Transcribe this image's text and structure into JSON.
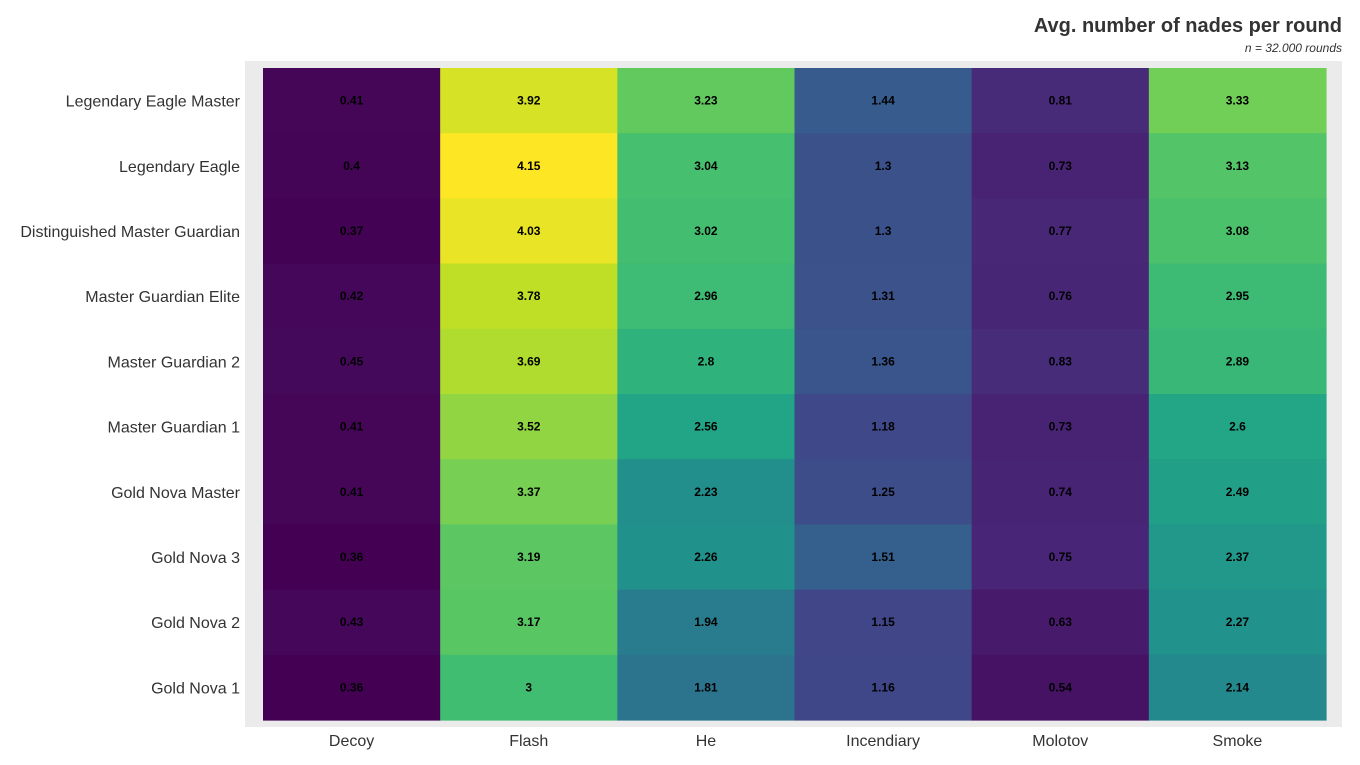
{
  "chart_data": {
    "type": "heatmap",
    "title": "Avg. number of nades per round",
    "subtitle": "n = 32.000 rounds",
    "colormap": "viridis",
    "value_range": [
      0.36,
      4.15
    ],
    "panel_background": "#ebebeb",
    "x_categories": [
      "Decoy",
      "Flash",
      "He",
      "Incendiary",
      "Molotov",
      "Smoke"
    ],
    "y_categories": [
      "Legendary Eagle Master",
      "Legendary Eagle",
      "Distinguished Master Guardian",
      "Master Guardian Elite",
      "Master Guardian 2",
      "Master Guardian 1",
      "Gold Nova Master",
      "Gold Nova 3",
      "Gold Nova 2",
      "Gold Nova 1"
    ],
    "values": [
      [
        0.41,
        3.92,
        3.23,
        1.44,
        0.81,
        3.33
      ],
      [
        0.4,
        4.15,
        3.04,
        1.3,
        0.73,
        3.13
      ],
      [
        0.37,
        4.03,
        3.02,
        1.3,
        0.77,
        3.08
      ],
      [
        0.42,
        3.78,
        2.96,
        1.31,
        0.76,
        2.95
      ],
      [
        0.45,
        3.69,
        2.8,
        1.36,
        0.83,
        2.89
      ],
      [
        0.41,
        3.52,
        2.56,
        1.18,
        0.73,
        2.6
      ],
      [
        0.41,
        3.37,
        2.23,
        1.25,
        0.74,
        2.49
      ],
      [
        0.36,
        3.19,
        2.26,
        1.51,
        0.75,
        2.37
      ],
      [
        0.43,
        3.17,
        1.94,
        1.15,
        0.63,
        2.27
      ],
      [
        0.36,
        3,
        1.81,
        1.16,
        0.54,
        2.14
      ]
    ],
    "grid": false,
    "legend": "none"
  }
}
